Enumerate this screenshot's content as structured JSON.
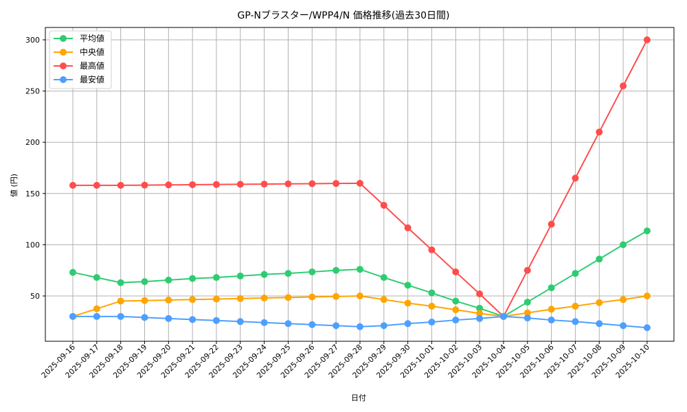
{
  "chart_data": {
    "type": "line",
    "title": "GP-Nブラスター/WPP4/N 価格推移(過去30日間)",
    "xlabel": "日付",
    "ylabel": "値 (円)",
    "ylim": [
      5.5,
      313
    ],
    "yticks": [
      50,
      100,
      150,
      200,
      250,
      300
    ],
    "grid": true,
    "legend_position": "upper left",
    "x": [
      "2025-09-16",
      "2025-09-17",
      "2025-09-18",
      "2025-09-19",
      "2025-09-20",
      "2025-09-21",
      "2025-09-22",
      "2025-09-23",
      "2025-09-24",
      "2025-09-25",
      "2025-09-26",
      "2025-09-27",
      "2025-09-28",
      "2025-09-29",
      "2025-09-30",
      "2025-10-01",
      "2025-10-02",
      "2025-10-03",
      "2025-10-04",
      "2025-10-05",
      "2025-10-06",
      "2025-10-07",
      "2025-10-08",
      "2025-10-09",
      "2025-10-10"
    ],
    "series": [
      {
        "name": "平均値",
        "color": "#2ecc71",
        "values": [
          73,
          68,
          63,
          64,
          65.5,
          67,
          68,
          69.5,
          71,
          72,
          73.5,
          75,
          76,
          68,
          60.5,
          53,
          45,
          38,
          30,
          44,
          58,
          72,
          86,
          100,
          113.5
        ]
      },
      {
        "name": "中央値",
        "color": "#ffa500",
        "values": [
          30,
          37.5,
          45,
          45.5,
          46,
          46.5,
          47,
          47.5,
          48,
          48.5,
          49,
          49.5,
          50,
          46.5,
          43,
          40,
          36.5,
          33,
          30,
          33.5,
          37,
          40,
          43.5,
          46.5,
          50
        ]
      },
      {
        "name": "最高値",
        "color": "#ff4d4d",
        "values": [
          158,
          158,
          158,
          158.2,
          158.4,
          158.6,
          158.8,
          159,
          159.2,
          159.4,
          159.6,
          159.8,
          160,
          138.5,
          116.5,
          95,
          73.5,
          52,
          30,
          75,
          120,
          165,
          210,
          255,
          300
        ]
      },
      {
        "name": "最安値",
        "color": "#4d9fff",
        "values": [
          30,
          30,
          30,
          29,
          28,
          27,
          26,
          25,
          24,
          23,
          22,
          21,
          20,
          21,
          23,
          24.5,
          26.5,
          28,
          30,
          28.5,
          26.5,
          25,
          23,
          21,
          19
        ]
      }
    ]
  }
}
